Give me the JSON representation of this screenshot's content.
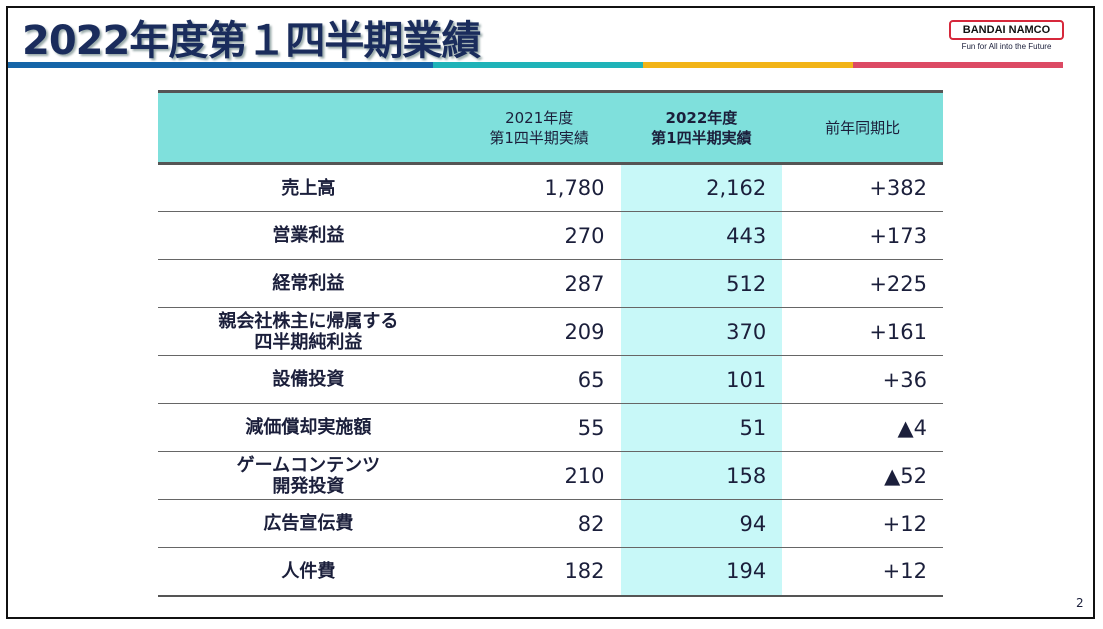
{
  "title": "2022年度第１四半期業績",
  "logo": {
    "brand": "BANDAI NAMCO",
    "tagline": "Fun for All into the Future"
  },
  "stripe_colors": [
    "#1565a8",
    "#1fb3b8",
    "#f2b417",
    "#dc4a64"
  ],
  "table": {
    "headers": [
      "",
      "2021年度\n第1四半期実績",
      "2022年度\n第1四半期実績",
      "前年同期比"
    ],
    "rows": [
      {
        "label": "売上高",
        "prev": "1,780",
        "curr": "2,162",
        "diff": "+382"
      },
      {
        "label": "営業利益",
        "prev": "270",
        "curr": "443",
        "diff": "+173"
      },
      {
        "label": "経常利益",
        "prev": "287",
        "curr": "512",
        "diff": "+225"
      },
      {
        "label": "親会社株主に帰属する\n四半期純利益",
        "prev": "209",
        "curr": "370",
        "diff": "+161"
      },
      {
        "label": "設備投資",
        "prev": "65",
        "curr": "101",
        "diff": "+36"
      },
      {
        "label": "減価償却実施額",
        "prev": "55",
        "curr": "51",
        "diff": "▲4"
      },
      {
        "label": "ゲームコンテンツ\n開発投資",
        "prev": "210",
        "curr": "158",
        "diff": "▲52"
      },
      {
        "label": "広告宣伝費",
        "prev": "82",
        "curr": "94",
        "diff": "+12"
      },
      {
        "label": "人件費",
        "prev": "182",
        "curr": "194",
        "diff": "+12"
      }
    ]
  },
  "page_number": "2"
}
